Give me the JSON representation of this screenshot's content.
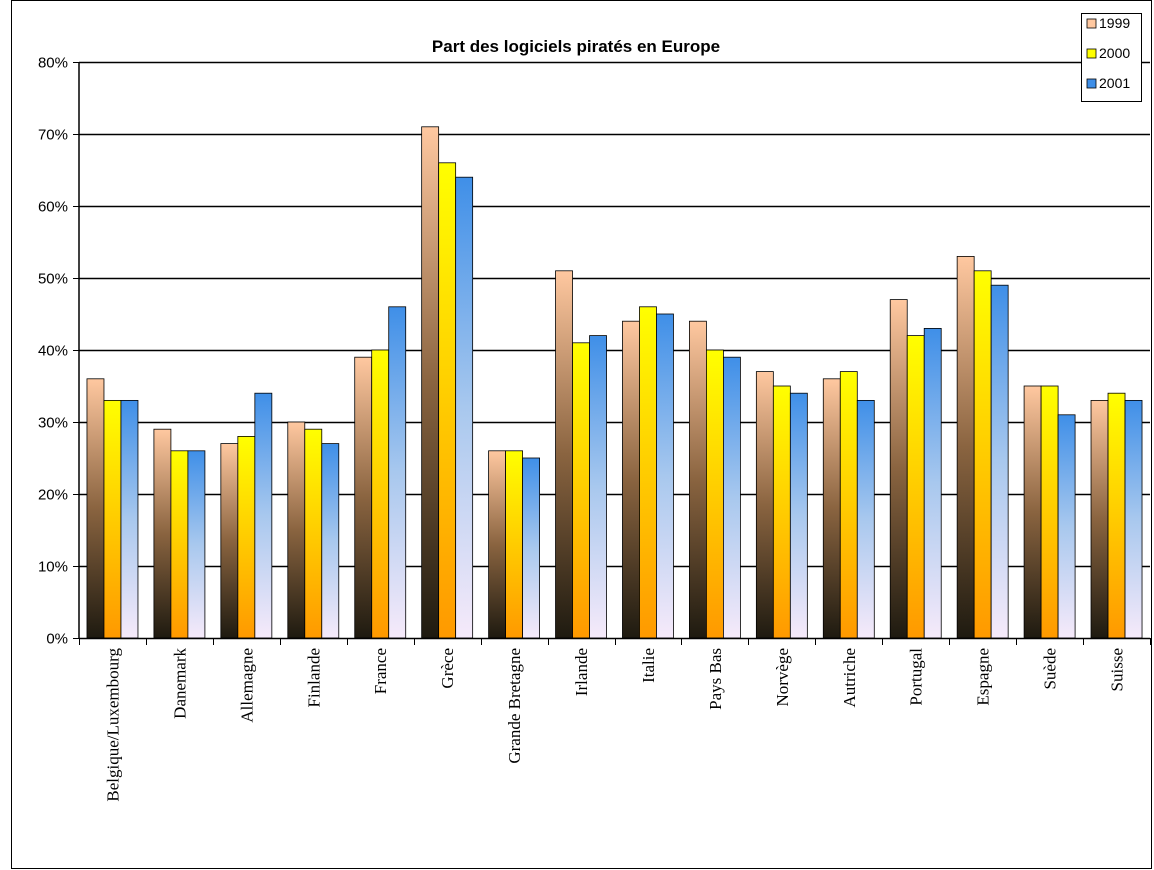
{
  "chart_data": {
    "type": "bar",
    "title": "Part des logiciels piratés en Europe",
    "xlabel": "",
    "ylabel": "",
    "ylim": [
      0,
      80
    ],
    "yticks": [
      "0%",
      "10%",
      "20%",
      "30%",
      "40%",
      "50%",
      "60%",
      "70%",
      "80%"
    ],
    "grid": true,
    "legend_position": "top-right",
    "categories": [
      "Belgique/Luxembourg",
      "Danemark",
      "Allemagne",
      "Finlande",
      "France",
      "Grèce",
      "Grande Bretagne",
      "Irlande",
      "Italie",
      "Pays Bas",
      "Norvège",
      "Autriche",
      "Portugal",
      "Espagne",
      "Suède",
      "Suisse"
    ],
    "series": [
      {
        "name": "1999",
        "color_top": "#ffc8a0",
        "color_bottom": "#1e1a10",
        "values": [
          36,
          29,
          27,
          30,
          39,
          71,
          26,
          51,
          44,
          44,
          37,
          36,
          47,
          53,
          35,
          33
        ]
      },
      {
        "name": "2000",
        "color_top": "#ffff00",
        "color_bottom": "#ff9900",
        "values": [
          33,
          26,
          28,
          29,
          40,
          66,
          26,
          41,
          46,
          40,
          35,
          37,
          42,
          51,
          35,
          34
        ]
      },
      {
        "name": "2001",
        "color_top": "#3f8fe8",
        "color_bottom": "#f6eafa",
        "values": [
          33,
          26,
          34,
          27,
          46,
          64,
          25,
          42,
          45,
          39,
          34,
          33,
          43,
          49,
          31,
          33
        ]
      }
    ]
  }
}
